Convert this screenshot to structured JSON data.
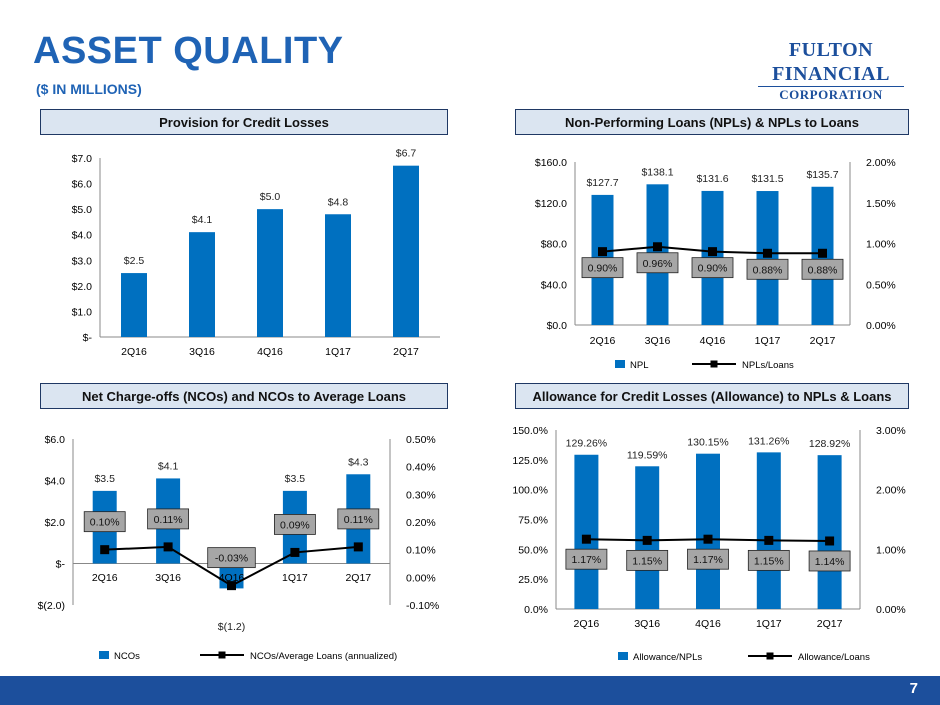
{
  "header": {
    "title": "ASSET QUALITY",
    "subtitle": "($ IN MILLIONS)",
    "logo_line1": "FULTON FINANCIAL",
    "logo_line2": "CORPORATION"
  },
  "panels": {
    "provision": "Provision for Credit Losses",
    "npl": "Non-Performing Loans (NPLs) & NPLs to Loans",
    "nco": "Net Charge-offs (NCOs) and NCOs to Average Loans",
    "allowance": "Allowance for Credit Losses (Allowance) to NPLs & Loans"
  },
  "colors": {
    "bar": "#0070c0",
    "line": "#000000",
    "label_box": "#a6a6a6",
    "title_blue": "#1f63b5",
    "footer": "#1c4f9c"
  },
  "page_number": "7",
  "chart_data": [
    {
      "type": "bar",
      "id": "provision",
      "categories": [
        "2Q16",
        "3Q16",
        "4Q16",
        "1Q17",
        "2Q17"
      ],
      "values": [
        2.5,
        4.1,
        5.0,
        4.8,
        6.7
      ],
      "data_labels": [
        "$2.5",
        "$4.1",
        "$5.0",
        "$4.8",
        "$6.7"
      ],
      "ylim": [
        0,
        7
      ],
      "y_ticks": [
        0,
        1,
        2,
        3,
        4,
        5,
        6,
        7
      ],
      "y_tick_labels": [
        "$-",
        "$1.0",
        "$2.0",
        "$3.0",
        "$4.0",
        "$5.0",
        "$6.0",
        "$7.0"
      ],
      "legend": []
    },
    {
      "type": "bar+line",
      "id": "npl",
      "categories": [
        "2Q16",
        "3Q16",
        "4Q16",
        "1Q17",
        "2Q17"
      ],
      "series": [
        {
          "name": "NPL",
          "type": "bar",
          "axis": "left",
          "values": [
            127.7,
            138.1,
            131.6,
            131.5,
            135.7
          ],
          "labels": [
            "$127.7",
            "$138.1",
            "$131.6",
            "$131.5",
            "$135.7"
          ]
        },
        {
          "name": "NPLs/Loans",
          "type": "line",
          "axis": "right",
          "values": [
            0.9,
            0.96,
            0.9,
            0.88,
            0.88
          ],
          "labels": [
            "0.90%",
            "0.96%",
            "0.90%",
            "0.88%",
            "0.88%"
          ]
        }
      ],
      "ylim": [
        0,
        160
      ],
      "y_ticks": [
        0,
        40,
        80,
        120,
        160
      ],
      "y_tick_labels": [
        "$0.0",
        "$40.0",
        "$80.0",
        "$120.0",
        "$160.0"
      ],
      "y2lim": [
        0,
        2
      ],
      "y2_ticks": [
        0,
        0.5,
        1,
        1.5,
        2
      ],
      "y2_tick_labels": [
        "0.00%",
        "0.50%",
        "1.00%",
        "1.50%",
        "2.00%"
      ],
      "legend_placement": "bottom"
    },
    {
      "type": "bar+line",
      "id": "nco",
      "categories": [
        "2Q16",
        "3Q16",
        "4Q16",
        "1Q17",
        "2Q17"
      ],
      "series": [
        {
          "name": "NCOs",
          "type": "bar",
          "axis": "left",
          "values": [
            3.5,
            4.1,
            -1.2,
            3.5,
            4.3
          ],
          "labels": [
            "$3.5",
            "$4.1",
            "$(1.2)",
            "$3.5",
            "$4.3"
          ]
        },
        {
          "name": "NCOs/Average Loans (annualized)",
          "type": "line",
          "axis": "right",
          "values": [
            0.1,
            0.11,
            -0.03,
            0.09,
            0.11
          ],
          "labels": [
            "0.10%",
            "0.11%",
            "-0.03%",
            "0.09%",
            "0.11%"
          ]
        }
      ],
      "ylim": [
        -2,
        6
      ],
      "y_ticks": [
        -2,
        0,
        2,
        4,
        6
      ],
      "y_tick_labels": [
        "$(2.0)",
        "$-",
        "$2.0",
        "$4.0",
        "$6.0"
      ],
      "y2lim": [
        -0.1,
        0.5
      ],
      "y2_ticks": [
        -0.1,
        0,
        0.1,
        0.2,
        0.3,
        0.4,
        0.5
      ],
      "y2_tick_labels": [
        "-0.10%",
        "0.00%",
        "0.10%",
        "0.20%",
        "0.30%",
        "0.40%",
        "0.50%"
      ],
      "legend_placement": "bottom"
    },
    {
      "type": "bar+line",
      "id": "allowance",
      "categories": [
        "2Q16",
        "3Q16",
        "4Q16",
        "1Q17",
        "2Q17"
      ],
      "series": [
        {
          "name": "Allowance/NPLs",
          "type": "bar",
          "axis": "left",
          "values": [
            129.26,
            119.59,
            130.15,
            131.26,
            128.92
          ],
          "labels": [
            "129.26%",
            "119.59%",
            "130.15%",
            "131.26%",
            "128.92%"
          ]
        },
        {
          "name": "Allowance/Loans",
          "type": "line",
          "axis": "right",
          "values": [
            1.17,
            1.15,
            1.17,
            1.15,
            1.14
          ],
          "labels": [
            "1.17%",
            "1.15%",
            "1.17%",
            "1.15%",
            "1.14%"
          ]
        }
      ],
      "ylim": [
        0,
        150
      ],
      "y_ticks": [
        0,
        25,
        50,
        75,
        100,
        125,
        150
      ],
      "y_tick_labels": [
        "0.0%",
        "25.0%",
        "50.0%",
        "75.0%",
        "100.0%",
        "125.0%",
        "150.0%"
      ],
      "y2lim": [
        0,
        3
      ],
      "y2_ticks": [
        0,
        1,
        2,
        3
      ],
      "y2_tick_labels": [
        "0.00%",
        "1.00%",
        "2.00%",
        "3.00%"
      ],
      "legend_placement": "bottom"
    }
  ]
}
